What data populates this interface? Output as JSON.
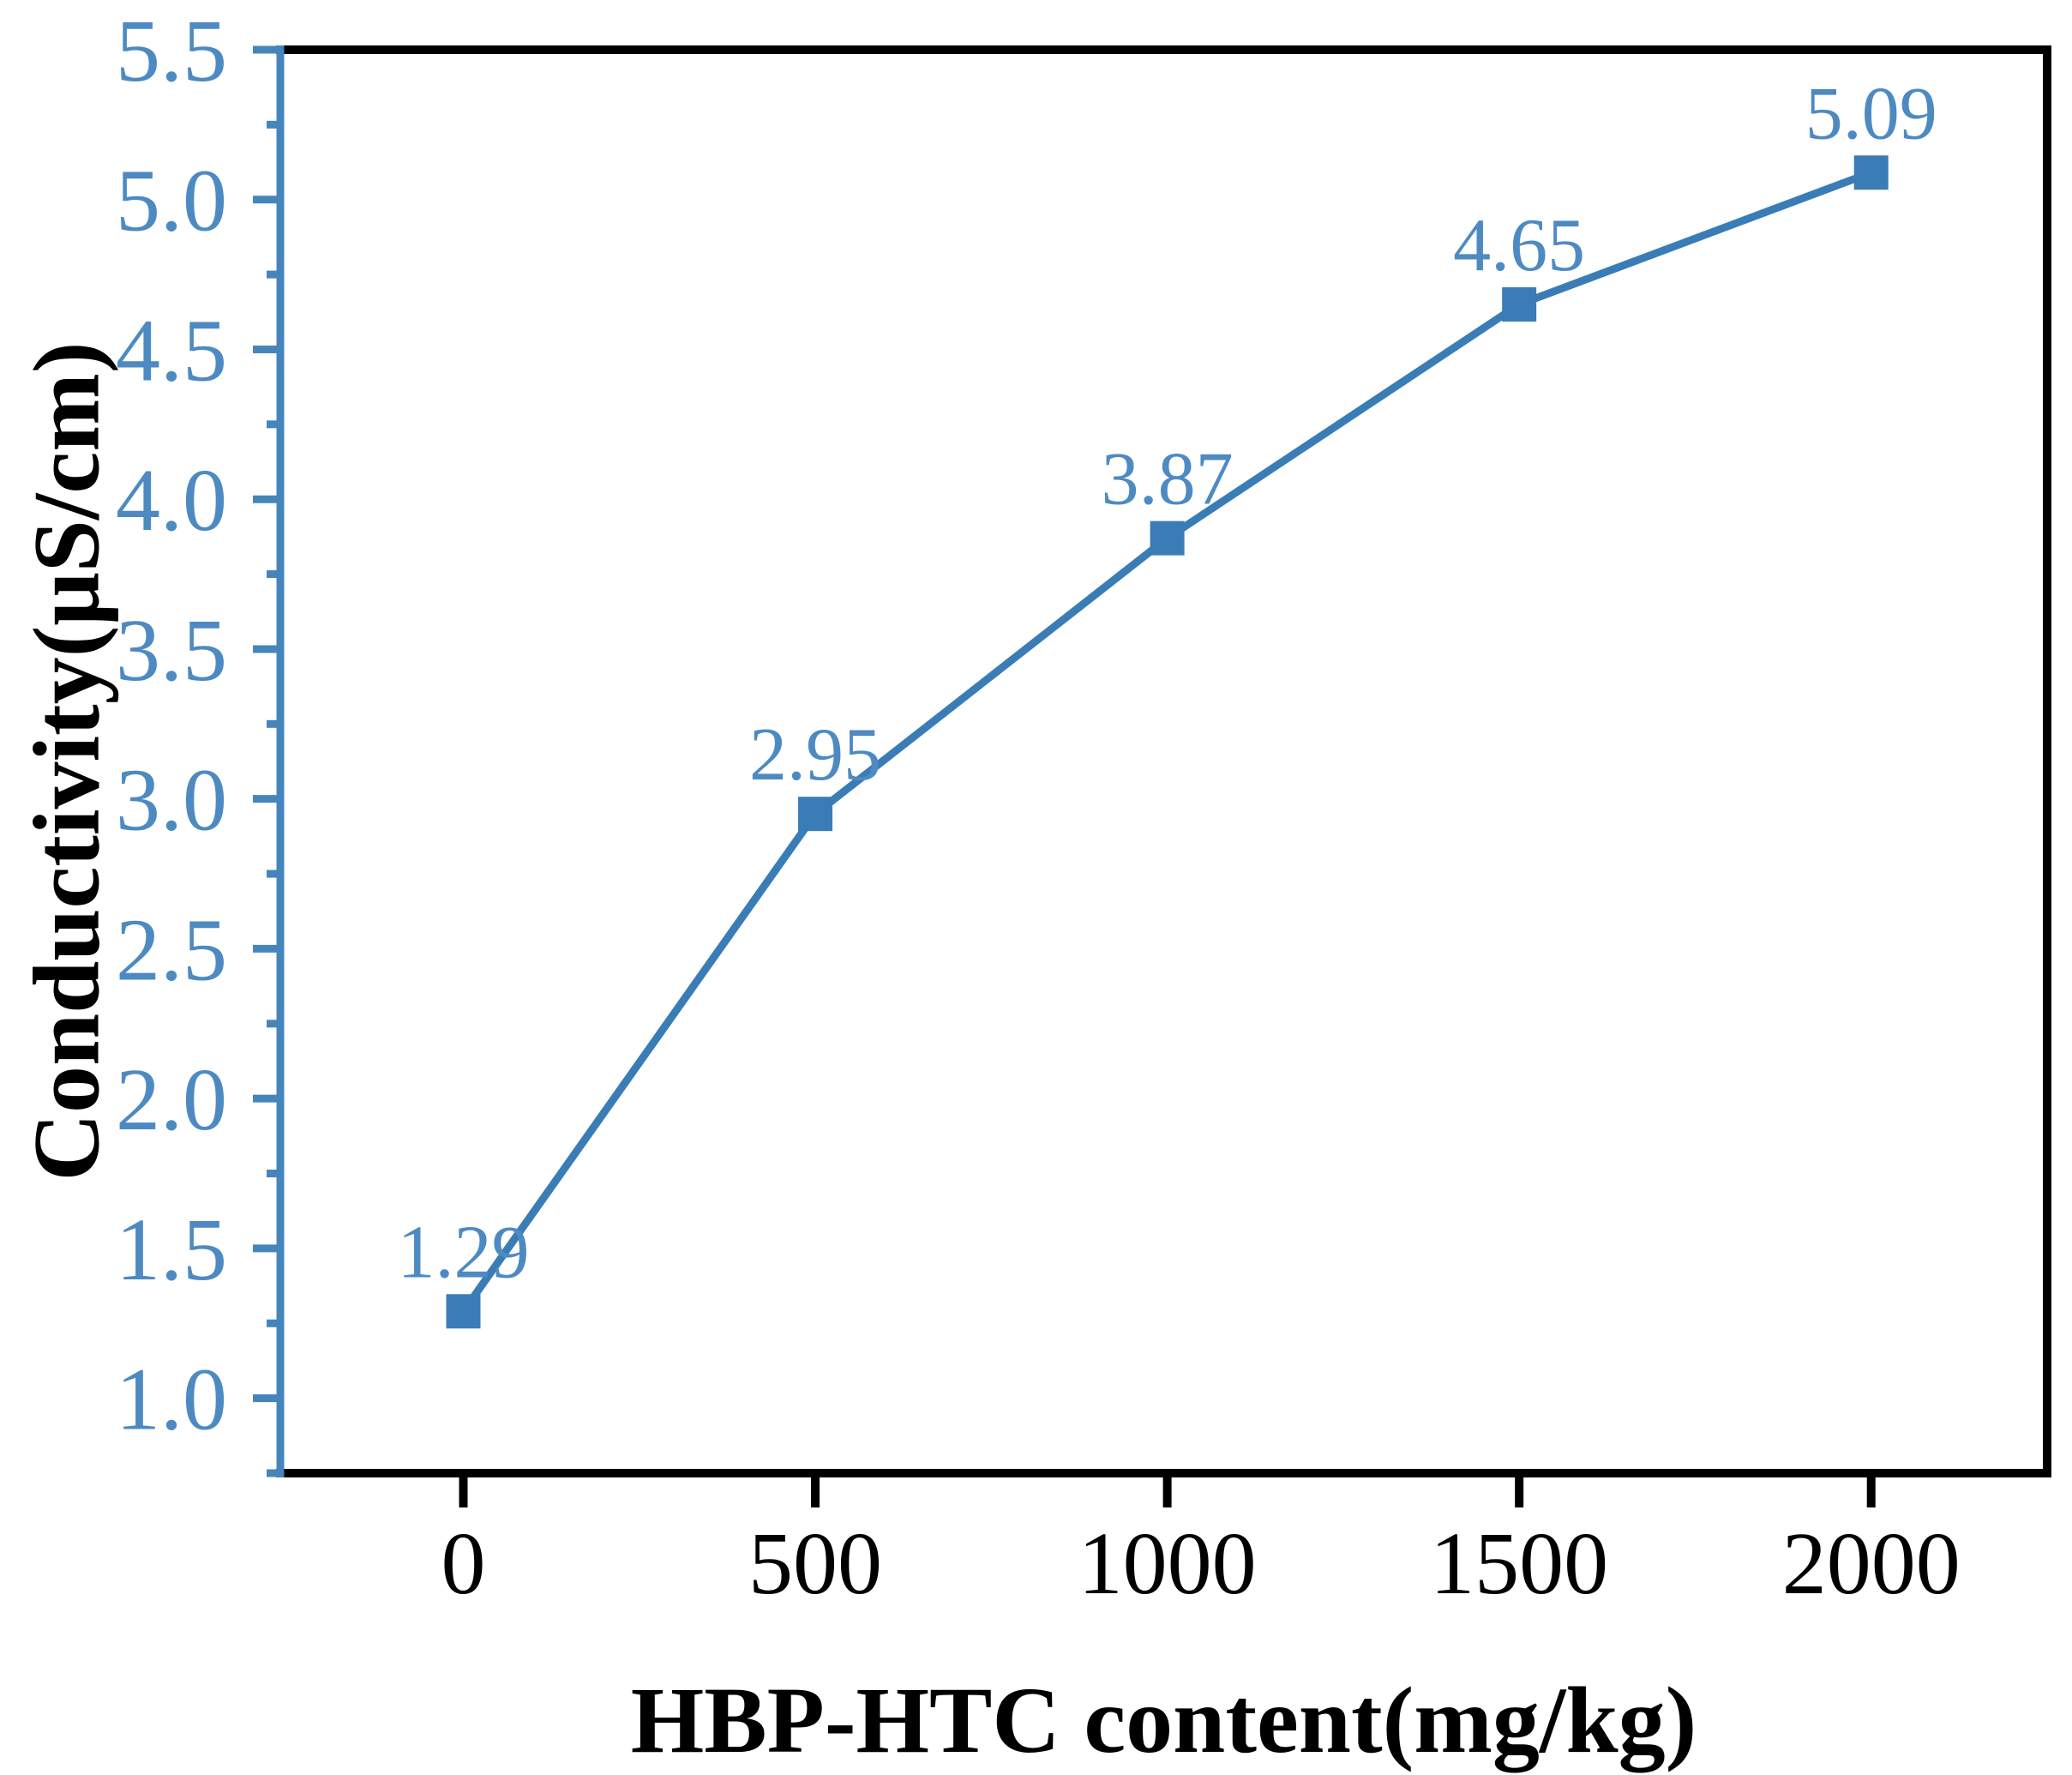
{
  "chart_data": {
    "type": "line",
    "title": "",
    "xlabel": "HBP-HTC content(mg/kg)",
    "ylabel": "Conductivity(μS/cm)",
    "x": [
      0,
      500,
      1000,
      1500,
      2000
    ],
    "y": [
      1.29,
      2.95,
      3.87,
      4.65,
      5.09
    ],
    "point_labels": [
      "1.29",
      "2.95",
      "3.87",
      "4.65",
      "5.09"
    ],
    "xlim": [
      -260,
      2250
    ],
    "ylim": [
      0.75,
      5.5
    ],
    "x_ticks": [
      0,
      500,
      1000,
      1500,
      2000
    ],
    "x_tick_labels": [
      "0",
      "500",
      "1000",
      "1500",
      "2000"
    ],
    "y_ticks": [
      1.0,
      1.5,
      2.0,
      2.5,
      3.0,
      3.5,
      4.0,
      4.5,
      5.0,
      5.5
    ],
    "y_tick_labels": [
      "1.0",
      "1.5",
      "2.0",
      "2.5",
      "3.0",
      "3.5",
      "4.0",
      "4.5",
      "5.0",
      "5.5"
    ],
    "y_minor_tick_step": 0.25,
    "grid": false,
    "legend": "none",
    "marker": "square",
    "colors": {
      "series": "#3a7db6",
      "y_axis": "#4685bc",
      "tick_labels": "#4e8ac2",
      "data_labels": "#4e8ac2",
      "x_axis": "#000000",
      "text": "#000000",
      "background": "#ffffff"
    }
  }
}
